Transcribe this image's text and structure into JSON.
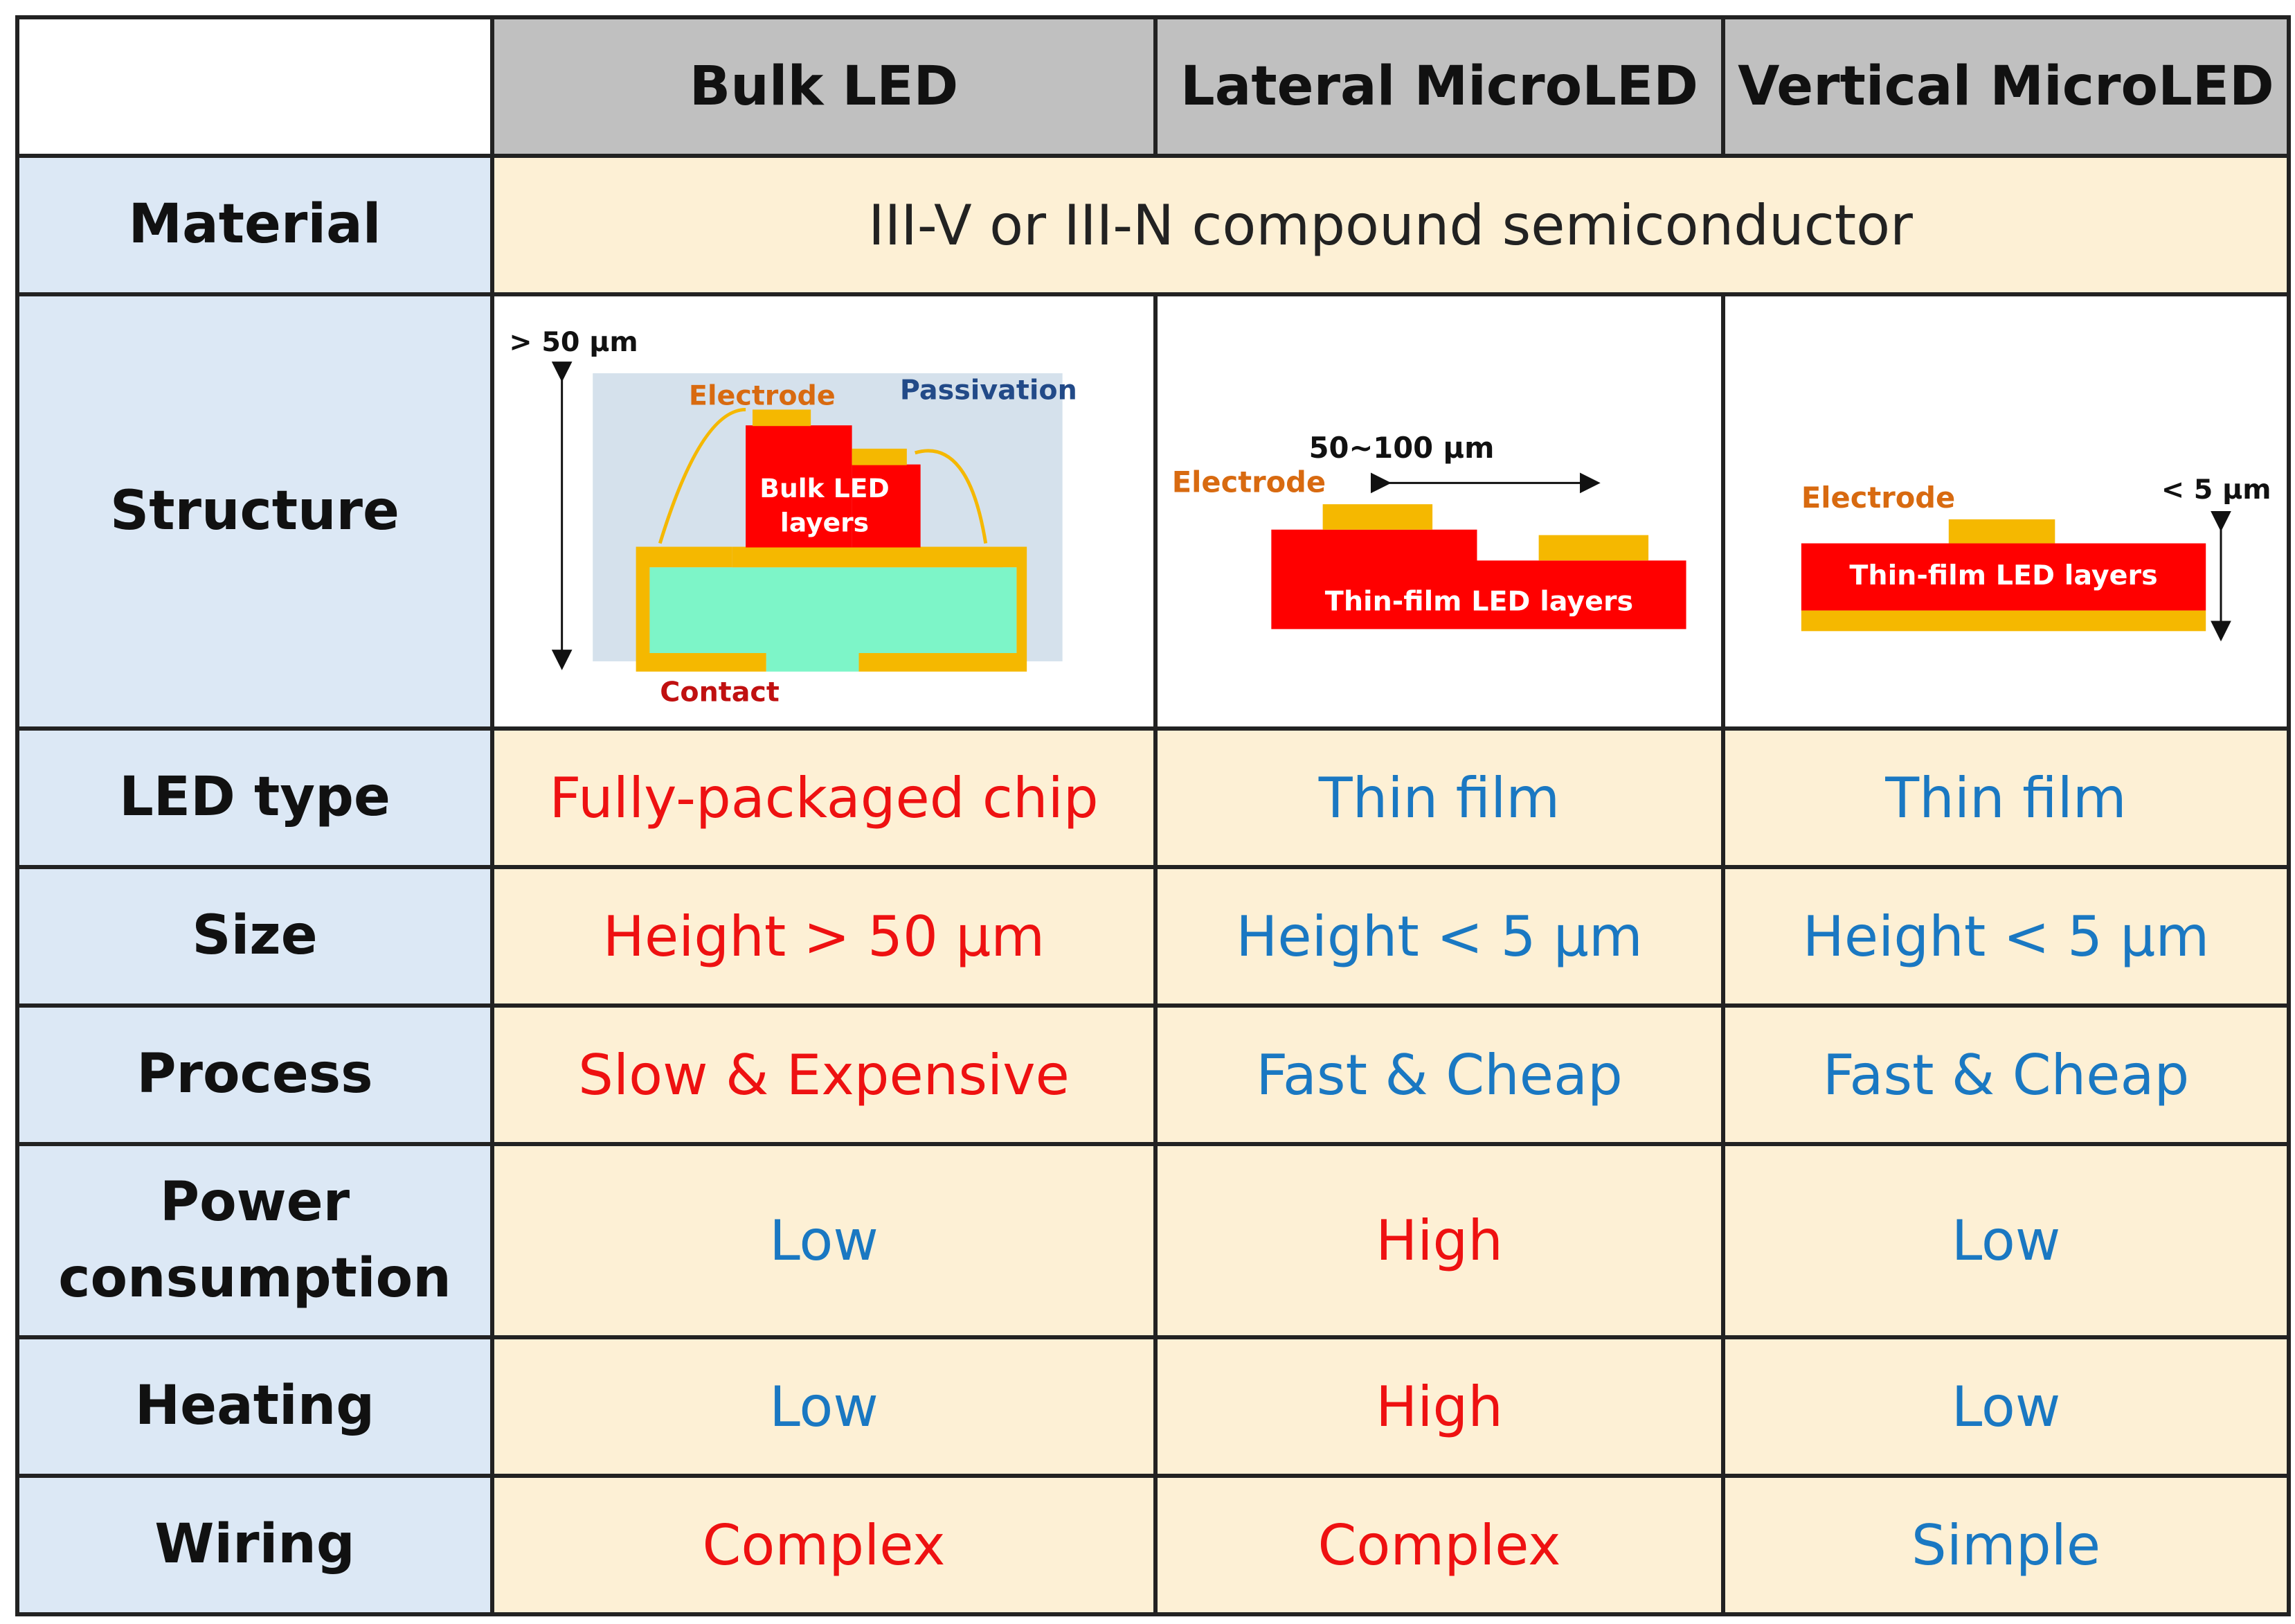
{
  "colors": {
    "red": "#ee1111",
    "blue": "#1a78c2",
    "header_bg": "#c0c0c0",
    "label_bg": "#dce8f5",
    "value_bg": "#fdf0d5"
  },
  "headers": [
    "Bulk LED",
    "Lateral MicroLED",
    "Vertical MicroLED"
  ],
  "material": {
    "label": "Material",
    "value": "III-V or III-N compound semiconductor"
  },
  "structure": {
    "label": "Structure",
    "bulk": {
      "height": "> 50 µm",
      "electrode": "Electrode",
      "passivation": "Passivation",
      "layers_line1": "Bulk LED",
      "layers_line2": "layers",
      "contact": "Contact"
    },
    "lateral": {
      "width": "50~100 µm",
      "electrode": "Electrode",
      "layers": "Thin-film LED layers"
    },
    "vertical": {
      "electrode": "Electrode",
      "height": "< 5 µm",
      "layers": "Thin-film LED layers"
    }
  },
  "rows": [
    {
      "label": "LED type",
      "values": [
        {
          "text": "Fully-packaged chip",
          "tone": "red"
        },
        {
          "text": "Thin film",
          "tone": "blue"
        },
        {
          "text": "Thin film",
          "tone": "blue"
        }
      ]
    },
    {
      "label": "Size",
      "values": [
        {
          "text": "Height > 50 µm",
          "tone": "red"
        },
        {
          "text": "Height < 5 µm",
          "tone": "blue"
        },
        {
          "text": "Height < 5 µm",
          "tone": "blue"
        }
      ]
    },
    {
      "label": "Process",
      "values": [
        {
          "text": "Slow & Expensive",
          "tone": "red"
        },
        {
          "text": "Fast & Cheap",
          "tone": "blue"
        },
        {
          "text": "Fast & Cheap",
          "tone": "blue"
        }
      ]
    },
    {
      "label_line1": "Power",
      "label_line2": "consumption",
      "values": [
        {
          "text": "Low",
          "tone": "blue"
        },
        {
          "text": "High",
          "tone": "red"
        },
        {
          "text": "Low",
          "tone": "blue"
        }
      ]
    },
    {
      "label": "Heating",
      "values": [
        {
          "text": "Low",
          "tone": "blue"
        },
        {
          "text": "High",
          "tone": "red"
        },
        {
          "text": "Low",
          "tone": "blue"
        }
      ]
    },
    {
      "label": "Wiring",
      "values": [
        {
          "text": "Complex",
          "tone": "red"
        },
        {
          "text": "Complex",
          "tone": "red"
        },
        {
          "text": "Simple",
          "tone": "blue"
        }
      ]
    }
  ]
}
